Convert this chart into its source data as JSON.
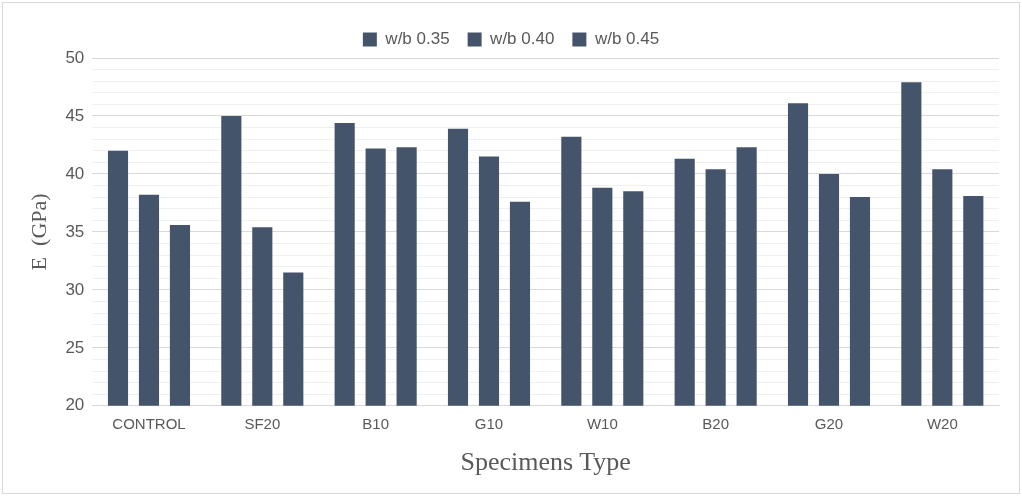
{
  "chart_data": {
    "type": "bar",
    "xlabel": "Specimens Type",
    "ylabel": "E  (GPa)",
    "categories": [
      "CONTROL",
      "SF20",
      "B10",
      "G10",
      "W10",
      "B20",
      "G20",
      "W20"
    ],
    "series": [
      {
        "name": "w/b 0.35",
        "color": "#44546a",
        "values": [
          42.0,
          45.0,
          44.4,
          43.9,
          43.2,
          41.3,
          46.1,
          47.9
        ]
      },
      {
        "name": "w/b 0.40",
        "color": "#44546a",
        "values": [
          38.2,
          35.4,
          42.2,
          41.5,
          38.8,
          40.4,
          40.0,
          40.4
        ]
      },
      {
        "name": "w/b 0.45",
        "color": "#44546a",
        "values": [
          35.6,
          31.5,
          42.3,
          37.6,
          38.5,
          42.3,
          38.0,
          38.1
        ]
      }
    ],
    "ylim": [
      20,
      50
    ],
    "yticks": [
      20,
      {
        "value": 21,
        "label": null
      },
      {
        "value": 22,
        "label": null
      },
      {
        "value": 23,
        "label": null
      },
      {
        "value": 24,
        "label": null
      },
      25,
      {
        "value": 26,
        "label": null
      },
      {
        "value": 27,
        "label": null
      },
      {
        "value": 28,
        "label": null
      },
      {
        "value": 29,
        "label": null
      },
      30,
      {
        "value": 31,
        "label": null
      },
      {
        "value": 32,
        "label": null
      },
      {
        "value": 33,
        "label": null
      },
      {
        "value": 34,
        "label": null
      },
      35,
      {
        "value": 36,
        "label": null
      },
      {
        "value": 37,
        "label": null
      },
      {
        "value": 38,
        "label": null
      },
      {
        "value": 39,
        "label": null
      },
      40,
      {
        "value": 41,
        "label": null
      },
      {
        "value": 42,
        "label": null
      },
      {
        "value": 43,
        "label": null
      },
      {
        "value": 44,
        "label": null
      },
      45,
      {
        "value": 46,
        "label": null
      },
      {
        "value": 47,
        "label": null
      },
      {
        "value": 48,
        "label": null
      },
      {
        "value": 49,
        "label": null
      },
      50
    ],
    "grid": "y",
    "legend": "top"
  }
}
